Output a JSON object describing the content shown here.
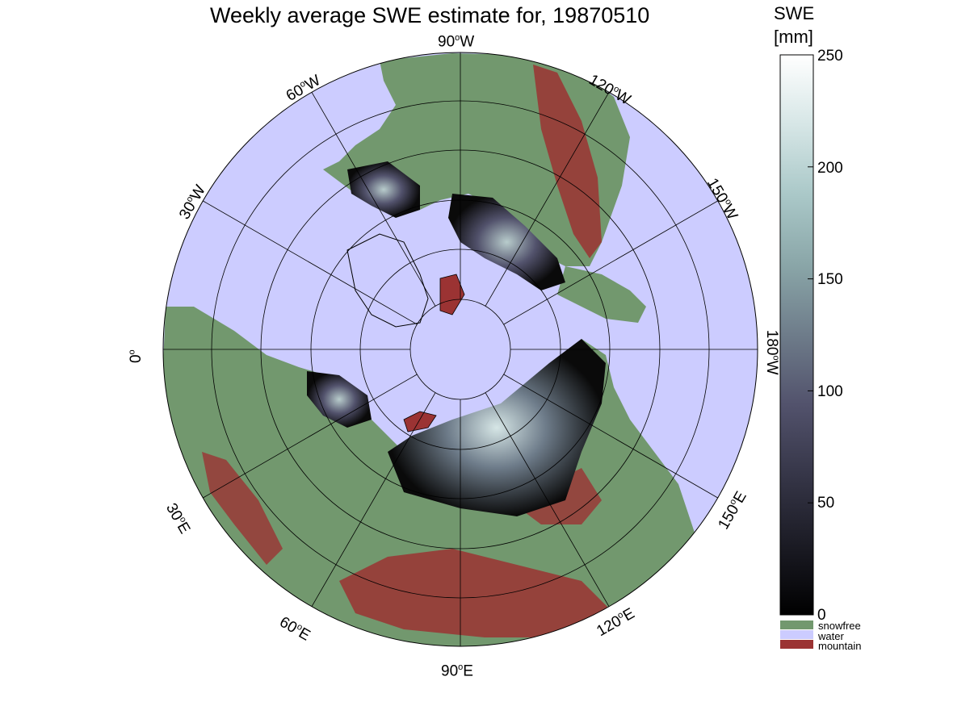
{
  "title": "Weekly average SWE estimate for, 19870510",
  "colorbar": {
    "unit_line1": "SWE",
    "unit_line2": "[mm]",
    "min": 0,
    "max": 250,
    "ticks": [
      "0",
      "50",
      "100",
      "150",
      "200",
      "250"
    ],
    "gradient": [
      "#000000",
      "#1b1b24",
      "#363648",
      "#52526c",
      "#6e7c8a",
      "#8aa6a8",
      "#aac8c8",
      "#d6e6e6",
      "#ffffff"
    ]
  },
  "legend": [
    {
      "label": "snowfree",
      "color": "#72986e"
    },
    {
      "label": "water",
      "color": "#ccccff"
    },
    {
      "label": "mountain",
      "color": "#9b3333"
    }
  ],
  "map": {
    "projection": "north polar stereographic",
    "colors": {
      "water": "#ccccff",
      "snowfree": "#72986e",
      "mountain": "#9b3333",
      "snow_low": "#0a0a0a",
      "snow_high": "#d6e6e6"
    },
    "longitude_labels": [
      {
        "deg": "90",
        "hemi": "W"
      },
      {
        "deg": "120",
        "hemi": "W"
      },
      {
        "deg": "150",
        "hemi": "W"
      },
      {
        "deg": "180",
        "hemi": "W"
      },
      {
        "deg": "150",
        "hemi": "E"
      },
      {
        "deg": "120",
        "hemi": "E"
      },
      {
        "deg": "90",
        "hemi": "E"
      },
      {
        "deg": "60",
        "hemi": "E"
      },
      {
        "deg": "30",
        "hemi": "E"
      },
      {
        "deg": "0",
        "hemi": ""
      },
      {
        "deg": "30",
        "hemi": "W"
      },
      {
        "deg": "60",
        "hemi": "W"
      }
    ]
  }
}
